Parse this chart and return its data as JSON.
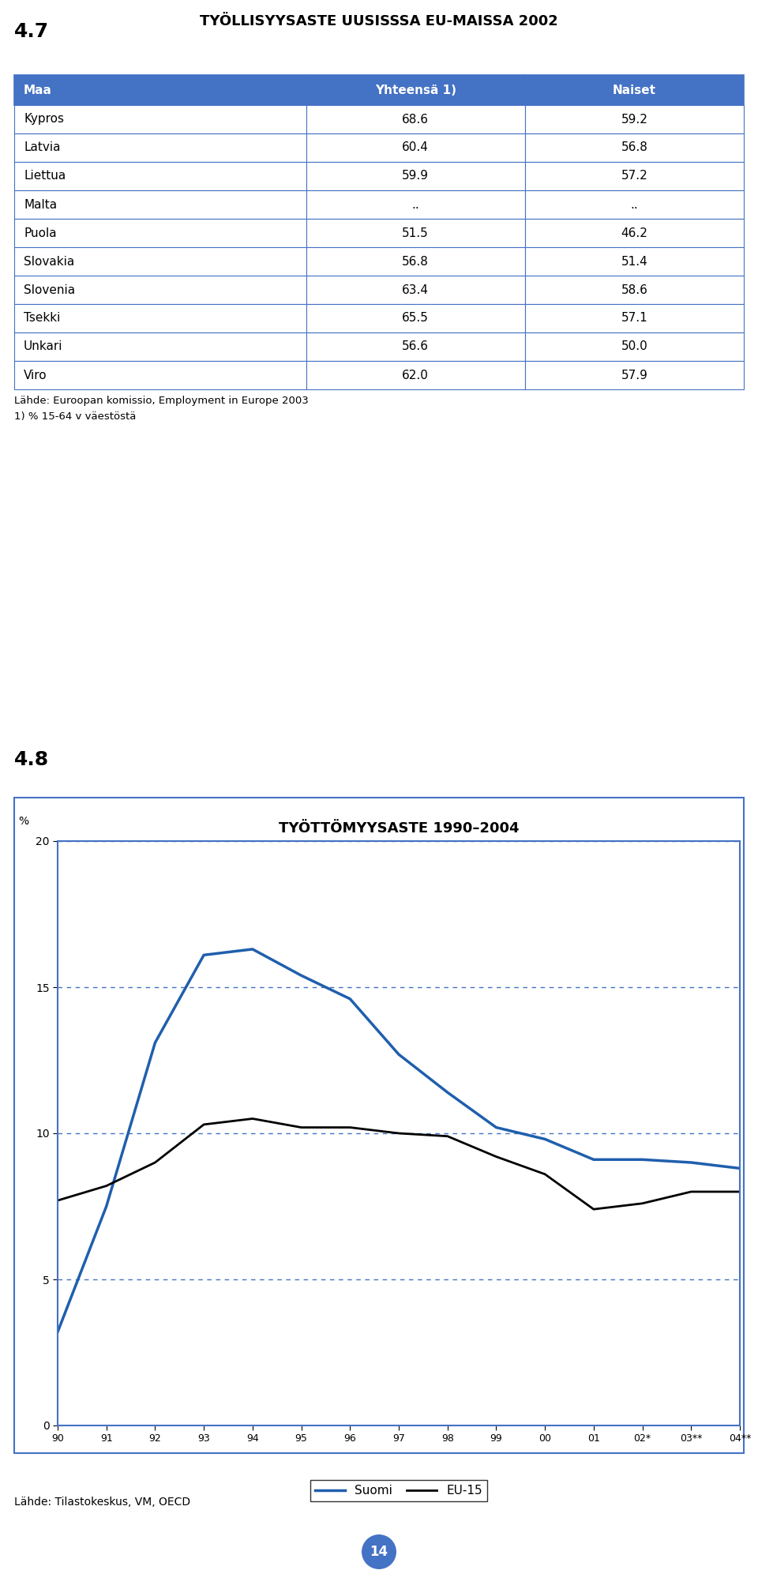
{
  "section1_label": "4.7",
  "table_title": "TYÖLLISYYSASTE UUSISSSA EU-MAISSA 2002",
  "table_headers": [
    "Maa",
    "Yhteensä 1)",
    "Naiset"
  ],
  "table_rows": [
    [
      "Kypros",
      "68.6",
      "59.2"
    ],
    [
      "Latvia",
      "60.4",
      "56.8"
    ],
    [
      "Liettua",
      "59.9",
      "57.2"
    ],
    [
      "Malta",
      "..",
      ".."
    ],
    [
      "Puola",
      "51.5",
      "46.2"
    ],
    [
      "Slovakia",
      "56.8",
      "51.4"
    ],
    [
      "Slovenia",
      "63.4",
      "58.6"
    ],
    [
      "Tsekki",
      "65.5",
      "57.1"
    ],
    [
      "Unkari",
      "56.6",
      "50.0"
    ],
    [
      "Viro",
      "62.0",
      "57.9"
    ]
  ],
  "table_footnote1": "Lähde: Euroopan komissio, Employment in Europe 2003",
  "table_footnote2": "1) % 15-64 v väestöstä",
  "section2_label": "4.8",
  "chart_title": "TYÖTTÖMYYSASTE 1990–2004",
  "chart_ylabel": "%",
  "chart_yticks": [
    0,
    5,
    10,
    15,
    20
  ],
  "chart_xticks": [
    "90",
    "91",
    "92",
    "93",
    "94",
    "95",
    "96",
    "97",
    "98",
    "99",
    "00",
    "01",
    "02*",
    "03**",
    "04**"
  ],
  "suomi_data": [
    3.2,
    7.5,
    13.1,
    16.1,
    16.3,
    15.4,
    14.6,
    12.7,
    11.4,
    10.2,
    9.8,
    9.1,
    9.1,
    9.0,
    8.8
  ],
  "eu15_data": [
    7.7,
    8.2,
    9.0,
    10.3,
    10.5,
    10.2,
    10.2,
    10.0,
    9.9,
    9.2,
    8.6,
    7.4,
    7.6,
    8.0,
    8.0
  ],
  "suomi_color": "#1F5FAD",
  "eu15_color": "#000000",
  "grid_color": "#4472C4",
  "chart_border_color": "#4472C4",
  "legend_labels": [
    "Suomi",
    "EU-15"
  ],
  "chart_footnote": "Lähde: Tilastokeskus, VM, OECD",
  "page_number": "14",
  "header_bg_color": "#4472C4",
  "header_text_color": "#FFFFFF",
  "table_border_color": "#4472C4",
  "bg_color": "#FFFFFF"
}
